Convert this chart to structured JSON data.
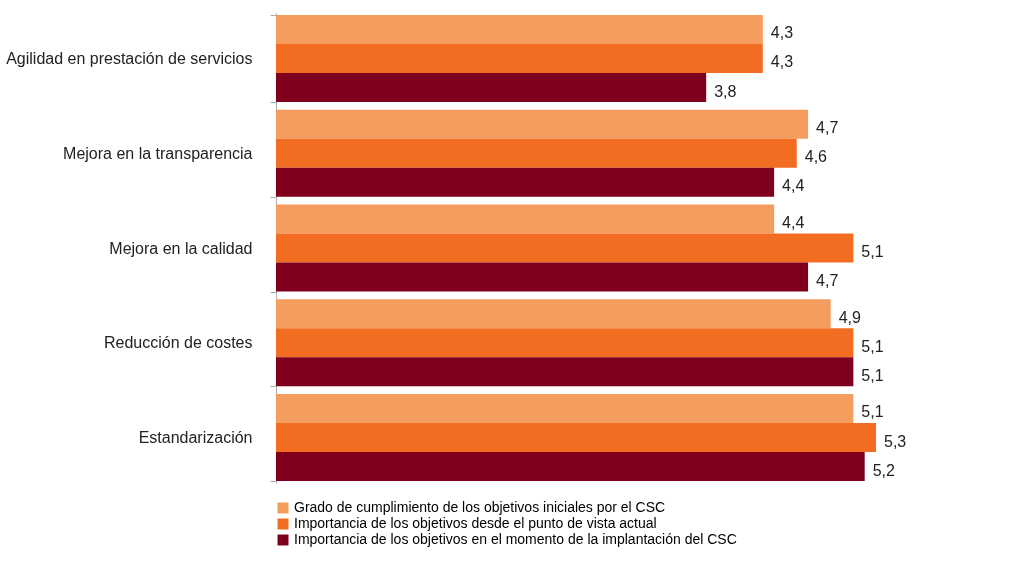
{
  "chart_data": {
    "type": "bar",
    "orientation": "horizontal",
    "categories": [
      "Agilidad en prestación de servicios",
      "Mejora en la transparencia",
      "Mejora en la calidad",
      "Reducción de costes",
      "Estandarización"
    ],
    "series": [
      {
        "name": "Grado de cumplimiento de los objetivos iniciales por el CSC",
        "color": "#f59c5f",
        "values": [
          4.3,
          4.7,
          4.4,
          4.9,
          5.1
        ],
        "value_labels": [
          "4,3",
          "4,7",
          "4,4",
          "4,9",
          "5,1"
        ]
      },
      {
        "name": "Importancia de los objetivos desde el punto de vista actual",
        "color": "#f26d21",
        "values": [
          4.3,
          4.6,
          5.1,
          5.1,
          5.3
        ],
        "value_labels": [
          "4,3",
          "4,6",
          "5,1",
          "5,1",
          "5,3"
        ]
      },
      {
        "name": "Importancia de los objetivos en el momento de la implantación del CSC",
        "color": "#7f001c",
        "values": [
          3.8,
          4.4,
          4.7,
          5.1,
          5.2
        ],
        "value_labels": [
          "3,8",
          "4,4",
          "4,7",
          "5,1",
          "5,2"
        ]
      }
    ],
    "tick_labels": "y",
    "grid": false,
    "legend": "bottom"
  }
}
